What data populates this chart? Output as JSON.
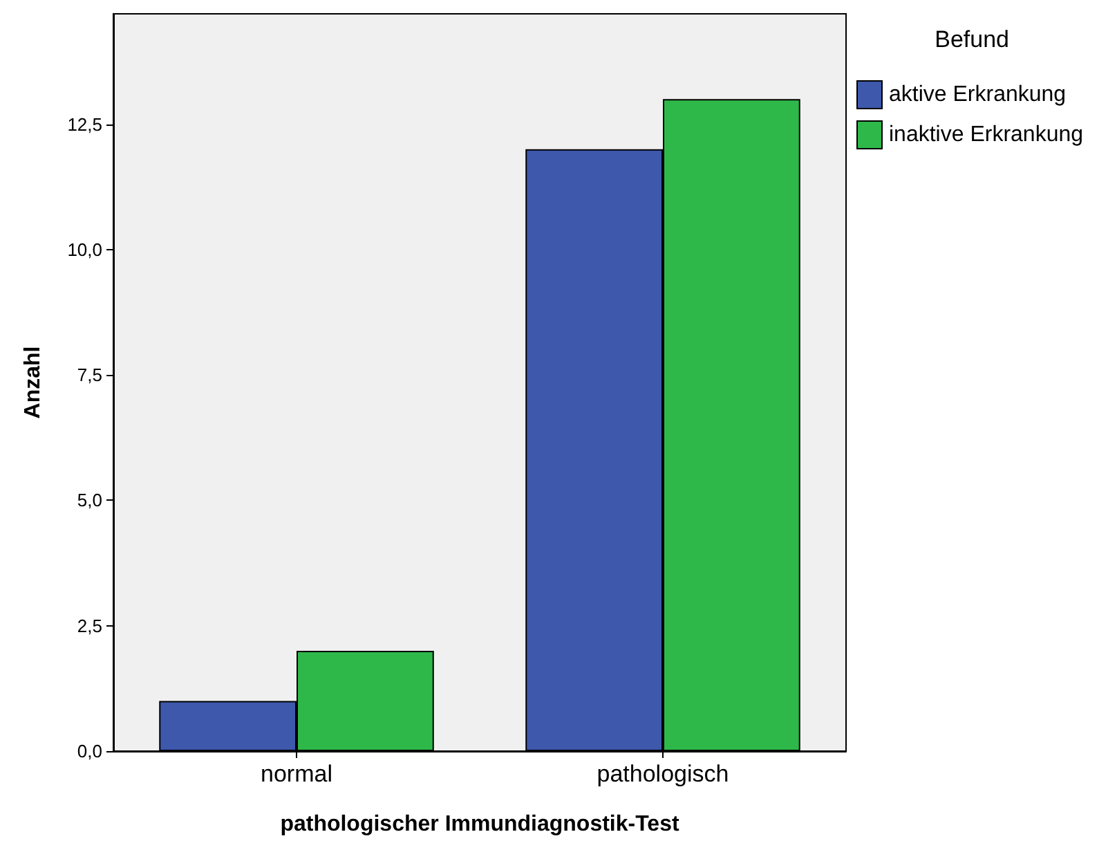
{
  "chart_data": {
    "type": "bar",
    "xlabel": "pathologischer Immundiagnostik-Test",
    "ylabel": "Anzahl",
    "legend_title": "Befund",
    "categories": [
      "normal",
      "pathologisch"
    ],
    "series": [
      {
        "name": "aktive Erkrankung",
        "color": "#3e58ac",
        "values": [
          1,
          12
        ]
      },
      {
        "name": "inaktive Erkrankung",
        "color": "#2eb84a",
        "values": [
          2,
          13
        ]
      }
    ],
    "ylim": [
      0,
      14.7
    ],
    "yticks": [
      {
        "value": 0,
        "label": "0,0"
      },
      {
        "value": 2.5,
        "label": "2,5"
      },
      {
        "value": 5,
        "label": "5,0"
      },
      {
        "value": 7.5,
        "label": "7,5"
      },
      {
        "value": 10,
        "label": "10,0"
      },
      {
        "value": 12.5,
        "label": "12,5"
      }
    ],
    "grid": false,
    "legend": "top right"
  }
}
